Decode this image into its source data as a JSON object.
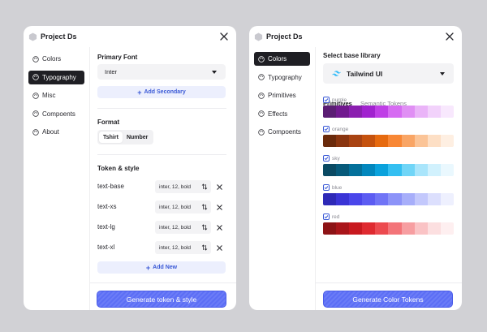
{
  "left": {
    "title": "Project Ds",
    "nav": [
      {
        "label": "Colors",
        "active": false
      },
      {
        "label": "Typography",
        "active": true
      },
      {
        "label": "Misc",
        "active": false
      },
      {
        "label": "Compoents",
        "active": false
      },
      {
        "label": "About",
        "active": false
      }
    ],
    "primary_font_label": "Primary Font",
    "primary_font_value": "Inter",
    "add_secondary": "Add Secondary",
    "format_label": "Format",
    "format_options": [
      "Tshirt",
      "Number"
    ],
    "token_label": "Token & style",
    "tokens": [
      {
        "name": "text-base",
        "value": "inter, 12, bold"
      },
      {
        "name": "text-xs",
        "value": "inter, 12, bold"
      },
      {
        "name": "text-lg",
        "value": "inter, 12, bold"
      },
      {
        "name": "text-xl",
        "value": "inter, 12, bold"
      }
    ],
    "add_new": "Add New",
    "generate": "Generate token & style"
  },
  "right": {
    "title": "Project Ds",
    "nav": [
      {
        "label": "Colors",
        "active": true
      },
      {
        "label": "Typography",
        "active": false
      },
      {
        "label": "Primitives",
        "active": false
      },
      {
        "label": "Effects",
        "active": false
      },
      {
        "label": "Compoents",
        "active": false
      }
    ],
    "library_label": "Select base library",
    "library_value": "Tailwind UI",
    "tabs": [
      {
        "label": "Primitives",
        "active": true
      },
      {
        "label": "Semantic Tokens",
        "active": false
      }
    ],
    "palettes": [
      {
        "name": "purple",
        "colors": [
          "#5b1d73",
          "#71198f",
          "#8b1fb0",
          "#a122cf",
          "#bf3fe6",
          "#d66bf2",
          "#e08ff4",
          "#eab4f8",
          "#f2d2fb",
          "#f8e8fd"
        ]
      },
      {
        "name": "orange",
        "colors": [
          "#6a2a0c",
          "#893510",
          "#a84312",
          "#c5520e",
          "#e66a0f",
          "#f88735",
          "#f9a565",
          "#fbc497",
          "#fddfc5",
          "#feefe2"
        ]
      },
      {
        "name": "sky",
        "colors": [
          "#0a4a63",
          "#075a7a",
          "#04709a",
          "#0287bd",
          "#0aa2dc",
          "#34bff1",
          "#70d5f7",
          "#a9e5fb",
          "#d1f1fd",
          "#eaf8fe"
        ]
      },
      {
        "name": "blue",
        "colors": [
          "#2e29b7",
          "#3a34d6",
          "#4a46ea",
          "#5c5cf2",
          "#7074f6",
          "#8c93f8",
          "#a7aefa",
          "#c3c8fc",
          "#dcdffd",
          "#eef0fe"
        ]
      },
      {
        "name": "red",
        "colors": [
          "#8d1316",
          "#a9151a",
          "#c8191f",
          "#df2a30",
          "#ec4a4f",
          "#f37479",
          "#f79ea1",
          "#fac3c5",
          "#fcdfe0",
          "#feeff0"
        ]
      }
    ],
    "generate": "Generate Color Tokens"
  },
  "colors": {
    "background": "#d1d1d5",
    "panel": "#ffffff",
    "accent": "#5c6ef5",
    "nav_active": "#1f1f24",
    "tailwind": "#38bdf8"
  }
}
